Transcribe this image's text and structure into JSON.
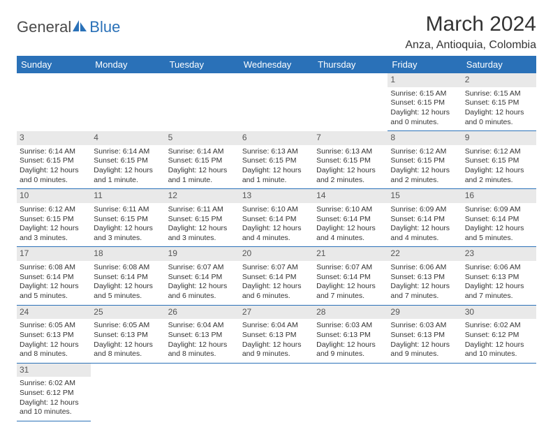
{
  "logo": {
    "text1": "General",
    "text2": "Blue"
  },
  "title": "March 2024",
  "location": "Anza, Antioquia, Colombia",
  "colors": {
    "header_bg": "#2a71b8",
    "header_fg": "#ffffff",
    "daynum_bg": "#e9e9e9",
    "row_divider": "#2a71b8",
    "page_bg": "#ffffff",
    "text": "#333333"
  },
  "day_headers": [
    "Sunday",
    "Monday",
    "Tuesday",
    "Wednesday",
    "Thursday",
    "Friday",
    "Saturday"
  ],
  "weeks": [
    {
      "nums": [
        "",
        "",
        "",
        "",
        "",
        "1",
        "2"
      ],
      "cells": [
        null,
        null,
        null,
        null,
        null,
        {
          "sunrise": "Sunrise: 6:15 AM",
          "sunset": "Sunset: 6:15 PM",
          "dl1": "Daylight: 12 hours",
          "dl2": "and 0 minutes."
        },
        {
          "sunrise": "Sunrise: 6:15 AM",
          "sunset": "Sunset: 6:15 PM",
          "dl1": "Daylight: 12 hours",
          "dl2": "and 0 minutes."
        }
      ]
    },
    {
      "nums": [
        "3",
        "4",
        "5",
        "6",
        "7",
        "8",
        "9"
      ],
      "cells": [
        {
          "sunrise": "Sunrise: 6:14 AM",
          "sunset": "Sunset: 6:15 PM",
          "dl1": "Daylight: 12 hours",
          "dl2": "and 0 minutes."
        },
        {
          "sunrise": "Sunrise: 6:14 AM",
          "sunset": "Sunset: 6:15 PM",
          "dl1": "Daylight: 12 hours",
          "dl2": "and 1 minute."
        },
        {
          "sunrise": "Sunrise: 6:14 AM",
          "sunset": "Sunset: 6:15 PM",
          "dl1": "Daylight: 12 hours",
          "dl2": "and 1 minute."
        },
        {
          "sunrise": "Sunrise: 6:13 AM",
          "sunset": "Sunset: 6:15 PM",
          "dl1": "Daylight: 12 hours",
          "dl2": "and 1 minute."
        },
        {
          "sunrise": "Sunrise: 6:13 AM",
          "sunset": "Sunset: 6:15 PM",
          "dl1": "Daylight: 12 hours",
          "dl2": "and 2 minutes."
        },
        {
          "sunrise": "Sunrise: 6:12 AM",
          "sunset": "Sunset: 6:15 PM",
          "dl1": "Daylight: 12 hours",
          "dl2": "and 2 minutes."
        },
        {
          "sunrise": "Sunrise: 6:12 AM",
          "sunset": "Sunset: 6:15 PM",
          "dl1": "Daylight: 12 hours",
          "dl2": "and 2 minutes."
        }
      ]
    },
    {
      "nums": [
        "10",
        "11",
        "12",
        "13",
        "14",
        "15",
        "16"
      ],
      "cells": [
        {
          "sunrise": "Sunrise: 6:12 AM",
          "sunset": "Sunset: 6:15 PM",
          "dl1": "Daylight: 12 hours",
          "dl2": "and 3 minutes."
        },
        {
          "sunrise": "Sunrise: 6:11 AM",
          "sunset": "Sunset: 6:15 PM",
          "dl1": "Daylight: 12 hours",
          "dl2": "and 3 minutes."
        },
        {
          "sunrise": "Sunrise: 6:11 AM",
          "sunset": "Sunset: 6:15 PM",
          "dl1": "Daylight: 12 hours",
          "dl2": "and 3 minutes."
        },
        {
          "sunrise": "Sunrise: 6:10 AM",
          "sunset": "Sunset: 6:14 PM",
          "dl1": "Daylight: 12 hours",
          "dl2": "and 4 minutes."
        },
        {
          "sunrise": "Sunrise: 6:10 AM",
          "sunset": "Sunset: 6:14 PM",
          "dl1": "Daylight: 12 hours",
          "dl2": "and 4 minutes."
        },
        {
          "sunrise": "Sunrise: 6:09 AM",
          "sunset": "Sunset: 6:14 PM",
          "dl1": "Daylight: 12 hours",
          "dl2": "and 4 minutes."
        },
        {
          "sunrise": "Sunrise: 6:09 AM",
          "sunset": "Sunset: 6:14 PM",
          "dl1": "Daylight: 12 hours",
          "dl2": "and 5 minutes."
        }
      ]
    },
    {
      "nums": [
        "17",
        "18",
        "19",
        "20",
        "21",
        "22",
        "23"
      ],
      "cells": [
        {
          "sunrise": "Sunrise: 6:08 AM",
          "sunset": "Sunset: 6:14 PM",
          "dl1": "Daylight: 12 hours",
          "dl2": "and 5 minutes."
        },
        {
          "sunrise": "Sunrise: 6:08 AM",
          "sunset": "Sunset: 6:14 PM",
          "dl1": "Daylight: 12 hours",
          "dl2": "and 5 minutes."
        },
        {
          "sunrise": "Sunrise: 6:07 AM",
          "sunset": "Sunset: 6:14 PM",
          "dl1": "Daylight: 12 hours",
          "dl2": "and 6 minutes."
        },
        {
          "sunrise": "Sunrise: 6:07 AM",
          "sunset": "Sunset: 6:14 PM",
          "dl1": "Daylight: 12 hours",
          "dl2": "and 6 minutes."
        },
        {
          "sunrise": "Sunrise: 6:07 AM",
          "sunset": "Sunset: 6:14 PM",
          "dl1": "Daylight: 12 hours",
          "dl2": "and 7 minutes."
        },
        {
          "sunrise": "Sunrise: 6:06 AM",
          "sunset": "Sunset: 6:13 PM",
          "dl1": "Daylight: 12 hours",
          "dl2": "and 7 minutes."
        },
        {
          "sunrise": "Sunrise: 6:06 AM",
          "sunset": "Sunset: 6:13 PM",
          "dl1": "Daylight: 12 hours",
          "dl2": "and 7 minutes."
        }
      ]
    },
    {
      "nums": [
        "24",
        "25",
        "26",
        "27",
        "28",
        "29",
        "30"
      ],
      "cells": [
        {
          "sunrise": "Sunrise: 6:05 AM",
          "sunset": "Sunset: 6:13 PM",
          "dl1": "Daylight: 12 hours",
          "dl2": "and 8 minutes."
        },
        {
          "sunrise": "Sunrise: 6:05 AM",
          "sunset": "Sunset: 6:13 PM",
          "dl1": "Daylight: 12 hours",
          "dl2": "and 8 minutes."
        },
        {
          "sunrise": "Sunrise: 6:04 AM",
          "sunset": "Sunset: 6:13 PM",
          "dl1": "Daylight: 12 hours",
          "dl2": "and 8 minutes."
        },
        {
          "sunrise": "Sunrise: 6:04 AM",
          "sunset": "Sunset: 6:13 PM",
          "dl1": "Daylight: 12 hours",
          "dl2": "and 9 minutes."
        },
        {
          "sunrise": "Sunrise: 6:03 AM",
          "sunset": "Sunset: 6:13 PM",
          "dl1": "Daylight: 12 hours",
          "dl2": "and 9 minutes."
        },
        {
          "sunrise": "Sunrise: 6:03 AM",
          "sunset": "Sunset: 6:13 PM",
          "dl1": "Daylight: 12 hours",
          "dl2": "and 9 minutes."
        },
        {
          "sunrise": "Sunrise: 6:02 AM",
          "sunset": "Sunset: 6:12 PM",
          "dl1": "Daylight: 12 hours",
          "dl2": "and 10 minutes."
        }
      ]
    },
    {
      "nums": [
        "31",
        "",
        "",
        "",
        "",
        "",
        ""
      ],
      "cells": [
        {
          "sunrise": "Sunrise: 6:02 AM",
          "sunset": "Sunset: 6:12 PM",
          "dl1": "Daylight: 12 hours",
          "dl2": "and 10 minutes."
        },
        null,
        null,
        null,
        null,
        null,
        null
      ]
    }
  ]
}
